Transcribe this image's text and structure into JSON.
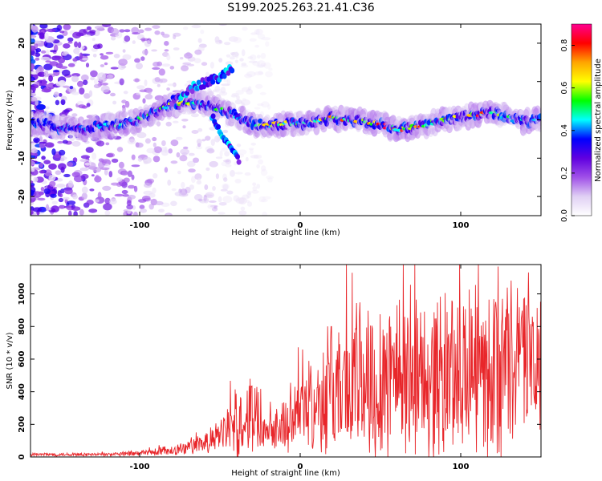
{
  "title": "S199.2025.263.21.41.C36",
  "colors": {
    "snr_line": "#e8262a",
    "axes": "#000000"
  },
  "chart_data": [
    {
      "type": "heatmap",
      "name": "spectrogram",
      "xlabel": "Height of straight line (km)",
      "ylabel": "Frequency (Hz)",
      "xlim": [
        -168,
        150
      ],
      "ylim": [
        -25,
        25
      ],
      "x_ticks": [
        -100,
        0,
        100
      ],
      "x_tick_labels": [
        "-100",
        "0",
        "100"
      ],
      "y_ticks": [
        -20,
        -10,
        0,
        10,
        20
      ],
      "y_tick_labels": [
        "-20",
        "-10",
        "0",
        "10",
        "20"
      ],
      "colorbar": {
        "label": "Normalized spectral amplitude",
        "range": [
          0,
          0.9
        ],
        "ticks": [
          0,
          0.2,
          0.4,
          0.6,
          0.8
        ],
        "tick_labels": [
          "0.0",
          "0.2",
          "0.4",
          "0.6",
          "0.8"
        ],
        "colors": [
          "#ffffff",
          "#e0d0f4",
          "#a050e8",
          "#6000e0",
          "#0000ff",
          "#00ffff",
          "#00ff00",
          "#ffff00",
          "#ffa500",
          "#ff0000",
          "#ff0090"
        ]
      },
      "ridge": [
        {
          "x": -160,
          "f": -1.0,
          "a": 0.35
        },
        {
          "x": -150,
          "f": -2.0,
          "a": 0.4
        },
        {
          "x": -140,
          "f": -2.5,
          "a": 0.45
        },
        {
          "x": -130,
          "f": -2.0,
          "a": 0.45
        },
        {
          "x": -120,
          "f": -1.5,
          "a": 0.5
        },
        {
          "x": -110,
          "f": -1.0,
          "a": 0.5
        },
        {
          "x": -100,
          "f": 0.0,
          "a": 0.5
        },
        {
          "x": -90,
          "f": 2.0,
          "a": 0.55
        },
        {
          "x": -80,
          "f": 4.0,
          "a": 0.6
        },
        {
          "x": -70,
          "f": 4.5,
          "a": 0.6
        },
        {
          "x": -60,
          "f": 4.0,
          "a": 0.55
        },
        {
          "x": -50,
          "f": 3.0,
          "a": 0.55
        },
        {
          "x": -40,
          "f": 1.0,
          "a": 0.5
        },
        {
          "x": -30,
          "f": -1.0,
          "a": 0.5
        },
        {
          "x": -20,
          "f": -1.5,
          "a": 0.7
        },
        {
          "x": -10,
          "f": -1.0,
          "a": 0.65
        },
        {
          "x": 0,
          "f": -1.0,
          "a": 0.6
        },
        {
          "x": 10,
          "f": -0.5,
          "a": 0.6
        },
        {
          "x": 20,
          "f": 0.5,
          "a": 0.8
        },
        {
          "x": 30,
          "f": 0.0,
          "a": 0.75
        },
        {
          "x": 40,
          "f": -0.5,
          "a": 0.7
        },
        {
          "x": 50,
          "f": -1.0,
          "a": 0.85
        },
        {
          "x": 60,
          "f": -2.5,
          "a": 0.7
        },
        {
          "x": 70,
          "f": -2.0,
          "a": 0.85
        },
        {
          "x": 80,
          "f": -1.0,
          "a": 0.6
        },
        {
          "x": 90,
          "f": 0.0,
          "a": 0.7
        },
        {
          "x": 100,
          "f": 0.5,
          "a": 0.55
        },
        {
          "x": 110,
          "f": 1.5,
          "a": 0.8
        },
        {
          "x": 120,
          "f": 2.0,
          "a": 0.65
        },
        {
          "x": 130,
          "f": 0.5,
          "a": 0.5
        },
        {
          "x": 140,
          "f": -0.5,
          "a": 0.45
        },
        {
          "x": 150,
          "f": 0.0,
          "a": 0.4
        }
      ],
      "side_branches": [
        [
          {
            "x": -80,
            "f": 5.0
          },
          {
            "x": -65,
            "f": 9.0
          },
          {
            "x": -50,
            "f": 11.0
          },
          {
            "x": -42,
            "f": 14.0
          }
        ],
        [
          {
            "x": -55,
            "f": 1.0
          },
          {
            "x": -48,
            "f": -4.0
          },
          {
            "x": -42,
            "f": -8.0
          },
          {
            "x": -38,
            "f": -11.0
          }
        ]
      ]
    },
    {
      "type": "line",
      "name": "snr",
      "xlabel": "Height of straight line (km)",
      "ylabel": "SNR (10 * v/v)",
      "xlim": [
        -168,
        150
      ],
      "ylim": [
        0,
        1180
      ],
      "x_ticks": [
        -100,
        0,
        100
      ],
      "x_tick_labels": [
        "-100",
        "0",
        "100"
      ],
      "y_ticks": [
        0,
        200,
        400,
        600,
        800,
        1000
      ],
      "y_tick_labels": [
        "0",
        "200",
        "400",
        "600",
        "800",
        "1000"
      ],
      "envelope": {
        "x": [
          -168,
          -120,
          -100,
          -80,
          -60,
          -50,
          -40,
          -30,
          -20,
          -10,
          0,
          10,
          20,
          30,
          40,
          50,
          60,
          70,
          80,
          90,
          100,
          110,
          120,
          130,
          140,
          150
        ],
        "mean": [
          15,
          15,
          20,
          40,
          80,
          130,
          200,
          270,
          180,
          200,
          280,
          340,
          420,
          450,
          470,
          500,
          540,
          500,
          480,
          500,
          540,
          520,
          510,
          560,
          600,
          600
        ],
        "amplitude": [
          12,
          12,
          20,
          40,
          70,
          110,
          250,
          280,
          120,
          190,
          250,
          350,
          450,
          500,
          600,
          620,
          620,
          600,
          550,
          620,
          600,
          560,
          600,
          600,
          500,
          500
        ]
      }
    }
  ]
}
